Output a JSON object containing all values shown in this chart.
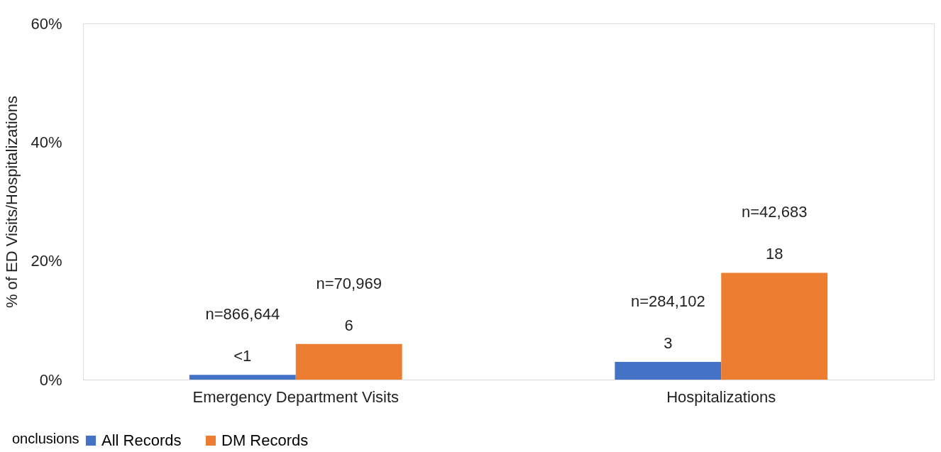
{
  "chart_data": {
    "type": "bar",
    "ylabel": "% of ED Visits/Hospitalizations",
    "categories": [
      "Emergency Department Visits",
      "Hospitalizations"
    ],
    "series": [
      {
        "name": "All Records",
        "color": "#4472c4",
        "values": [
          0.8,
          3
        ],
        "value_labels": [
          "<1",
          "3"
        ]
      },
      {
        "name": "DM Records",
        "color": "#ed7d31",
        "values": [
          6,
          18
        ],
        "value_labels": [
          "6",
          "18"
        ]
      }
    ],
    "ylim": [
      0,
      60
    ],
    "yticks": [
      {
        "value": 0,
        "label": "0%"
      },
      {
        "value": 20,
        "label": "20%"
      },
      {
        "value": 40,
        "label": "40%"
      },
      {
        "value": 60,
        "label": "60%"
      }
    ],
    "grid": false,
    "legend": "bottom",
    "annotations": [
      "n=866,644",
      "n=70,969",
      "n=284,102",
      "n=42,683",
      "onclusions"
    ]
  }
}
